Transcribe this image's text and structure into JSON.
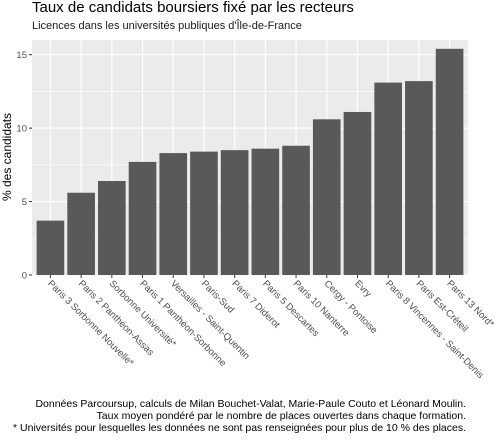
{
  "chart_data": {
    "type": "bar",
    "title": "Taux de candidats boursiers fixé par les recteurs",
    "subtitle": "Licences dans les universités publiques d'Île-de-France",
    "xlabel": "",
    "ylabel": "% des candidats",
    "ylim": [
      0,
      16
    ],
    "yticks": [
      0,
      5,
      10,
      15
    ],
    "grid": true,
    "bar_color": "#595959",
    "panel_color": "#ebebeb",
    "categories": [
      "Paris 3 Sorbonne Nouvelle*",
      "Paris 2 Panthéon-Assas",
      "Sorbonne Université*",
      "Paris 1 Panthéon-Sorbonne",
      "Versailles - Saint-Quentin",
      "Paris-Sud",
      "Paris 7 Diderot",
      "Paris 5 Descartes",
      "Paris 10 Nanterre",
      "Cergy - Pontoise",
      "Evry",
      "Paris 8 Vincennes - Saint-Denis",
      "Paris Est-Créteil",
      "Paris 13 Nord*"
    ],
    "values": [
      3.7,
      5.6,
      6.4,
      7.7,
      8.3,
      8.4,
      8.5,
      8.6,
      8.8,
      10.6,
      11.1,
      13.1,
      13.2,
      15.4
    ],
    "caption": [
      "Données Parcoursup, calculs de Milan Bouchet-Valat, Marie-Paule Couto et Léonard Moulin.",
      "Taux moyen pondéré par le nombre de places ouvertes dans chaque formation.",
      "* Universités pour lesquelles les données ne sont pas renseignées pour plus de 10 % des places."
    ]
  }
}
